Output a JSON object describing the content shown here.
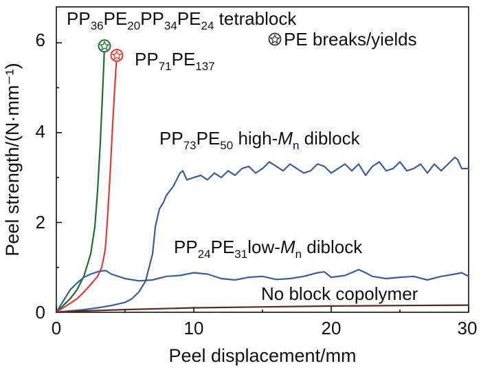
{
  "chart_data": {
    "type": "line",
    "title": "",
    "xlabel": "Peel displacement/mm",
    "ylabel": "Peel strength/(N·mm⁻¹)",
    "xlim": [
      0,
      30
    ],
    "ylim": [
      0,
      6.8
    ],
    "x_ticks": [
      0,
      10,
      20,
      30
    ],
    "y_ticks": [
      0,
      2,
      4,
      6
    ],
    "grid": false,
    "series": [
      {
        "name": "PP36PE20PP34PE24 tetrablock",
        "color": "#1f6e2e",
        "x": [
          0,
          0.5,
          1.0,
          1.5,
          2.0,
          2.5,
          2.8,
          3.0,
          3.2,
          3.35,
          3.45,
          3.5
        ],
        "y": [
          0,
          0.15,
          0.3,
          0.5,
          0.8,
          1.3,
          1.9,
          2.7,
          3.8,
          4.8,
          5.5,
          5.93
        ],
        "end_marker": true
      },
      {
        "name": "PP71PE137",
        "color": "#e53935",
        "x": [
          0,
          0.5,
          1.0,
          1.5,
          2.0,
          2.5,
          3.0,
          3.3,
          3.5,
          3.55,
          3.6,
          3.7,
          3.9,
          4.1,
          4.25,
          4.35,
          4.4
        ],
        "y": [
          0,
          0.1,
          0.2,
          0.3,
          0.45,
          0.62,
          0.8,
          1.0,
          1.3,
          1.4,
          1.55,
          2.0,
          3.0,
          4.2,
          5.0,
          5.5,
          5.72
        ],
        "end_marker": true
      },
      {
        "name": "PP73PE50 high-Mn diblock",
        "color": "#3b5ba5",
        "x": [
          0,
          1,
          2,
          3,
          4,
          5,
          5.5,
          6,
          6.5,
          7,
          7.2,
          7.5,
          7.8,
          8,
          8.5,
          9,
          9.2,
          9.5,
          10,
          10.5,
          11,
          11.5,
          12,
          12.5,
          13,
          13.5,
          14,
          14.5,
          15,
          15.5,
          16,
          16.5,
          17,
          17.5,
          18,
          18.5,
          19,
          19.5,
          20,
          20.5,
          21,
          21.5,
          22,
          22.5,
          23,
          23.5,
          24,
          24.5,
          25,
          25.5,
          26,
          26.5,
          27,
          27.5,
          28,
          28.5,
          29,
          29.2,
          29.5,
          30
        ],
        "y": [
          0,
          0.03,
          0.06,
          0.1,
          0.15,
          0.22,
          0.3,
          0.45,
          0.7,
          1.3,
          1.9,
          2.3,
          2.45,
          2.6,
          2.8,
          3.1,
          3.15,
          2.95,
          3.0,
          3.05,
          2.95,
          3.1,
          3.0,
          3.15,
          3.05,
          3.2,
          3.25,
          3.1,
          3.2,
          3.35,
          3.25,
          3.15,
          3.3,
          3.2,
          3.1,
          3.15,
          3.3,
          3.25,
          3.1,
          3.2,
          3.3,
          3.15,
          3.3,
          3.05,
          3.25,
          3.35,
          3.15,
          3.2,
          3.35,
          3.15,
          3.2,
          3.3,
          3.1,
          3.3,
          3.15,
          3.3,
          3.45,
          3.4,
          3.2,
          3.2
        ]
      },
      {
        "name": "PP24PE31 low-Mn diblock",
        "color": "#3b5ba5",
        "x": [
          0,
          0.5,
          1.0,
          1.5,
          2.0,
          2.5,
          3.0,
          3.3,
          3.6,
          4.0,
          4.5,
          5,
          6,
          7,
          8,
          9,
          10,
          11,
          12,
          13,
          14,
          15,
          16,
          17,
          18,
          19,
          19.5,
          20,
          21,
          22,
          22.5,
          23,
          24,
          25,
          26,
          27,
          28,
          29,
          29.5,
          30
        ],
        "y": [
          0,
          0.25,
          0.5,
          0.65,
          0.78,
          0.85,
          0.9,
          0.92,
          0.93,
          0.85,
          0.8,
          0.75,
          0.7,
          0.72,
          0.8,
          0.82,
          0.88,
          0.85,
          0.75,
          0.72,
          0.78,
          0.8,
          0.73,
          0.75,
          0.8,
          0.88,
          0.9,
          0.78,
          0.82,
          0.95,
          0.88,
          0.8,
          0.75,
          0.78,
          0.8,
          0.72,
          0.8,
          0.85,
          0.88,
          0.8
        ]
      },
      {
        "name": "No block copolymer",
        "color": "#5a2a1a",
        "x": [
          0,
          2,
          5,
          10,
          15,
          20,
          25,
          30
        ],
        "y": [
          0,
          0.03,
          0.06,
          0.1,
          0.12,
          0.14,
          0.15,
          0.16
        ]
      }
    ],
    "annotations": {
      "tetrablock": {
        "parts": [
          {
            "t": "PP",
            "sub": false
          },
          {
            "t": "36",
            "sub": true
          },
          {
            "t": "PE",
            "sub": false
          },
          {
            "t": "20",
            "sub": true
          },
          {
            "t": "PP",
            "sub": false
          },
          {
            "t": "34",
            "sub": true
          },
          {
            "t": "PE",
            "sub": false
          },
          {
            "t": "24",
            "sub": true
          },
          {
            "t": " tetrablock",
            "sub": false
          }
        ]
      },
      "legend_marker": "PE breaks/yields",
      "pp71": {
        "parts": [
          {
            "t": "PP",
            "sub": false
          },
          {
            "t": "71",
            "sub": true
          },
          {
            "t": "PE",
            "sub": false
          },
          {
            "t": "137",
            "sub": true
          }
        ]
      },
      "high_mn": {
        "parts": [
          {
            "t": "PP",
            "sub": false
          },
          {
            "t": "73",
            "sub": true
          },
          {
            "t": "PE",
            "sub": false
          },
          {
            "t": "50",
            "sub": true
          },
          {
            "t": " high-",
            "sub": false
          },
          {
            "t": "M",
            "sub": false,
            "italic": true
          },
          {
            "t": "n",
            "sub": true
          },
          {
            "t": " diblock",
            "sub": false
          }
        ]
      },
      "low_mn": {
        "parts": [
          {
            "t": "PP",
            "sub": false
          },
          {
            "t": "24",
            "sub": true
          },
          {
            "t": "PE",
            "sub": false
          },
          {
            "t": "31",
            "sub": true
          },
          {
            "t": "low-",
            "sub": false
          },
          {
            "t": "M",
            "sub": false,
            "italic": true
          },
          {
            "t": "n",
            "sub": true
          },
          {
            "t": " diblock",
            "sub": false
          }
        ]
      },
      "no_block": "No block copolymer"
    }
  }
}
